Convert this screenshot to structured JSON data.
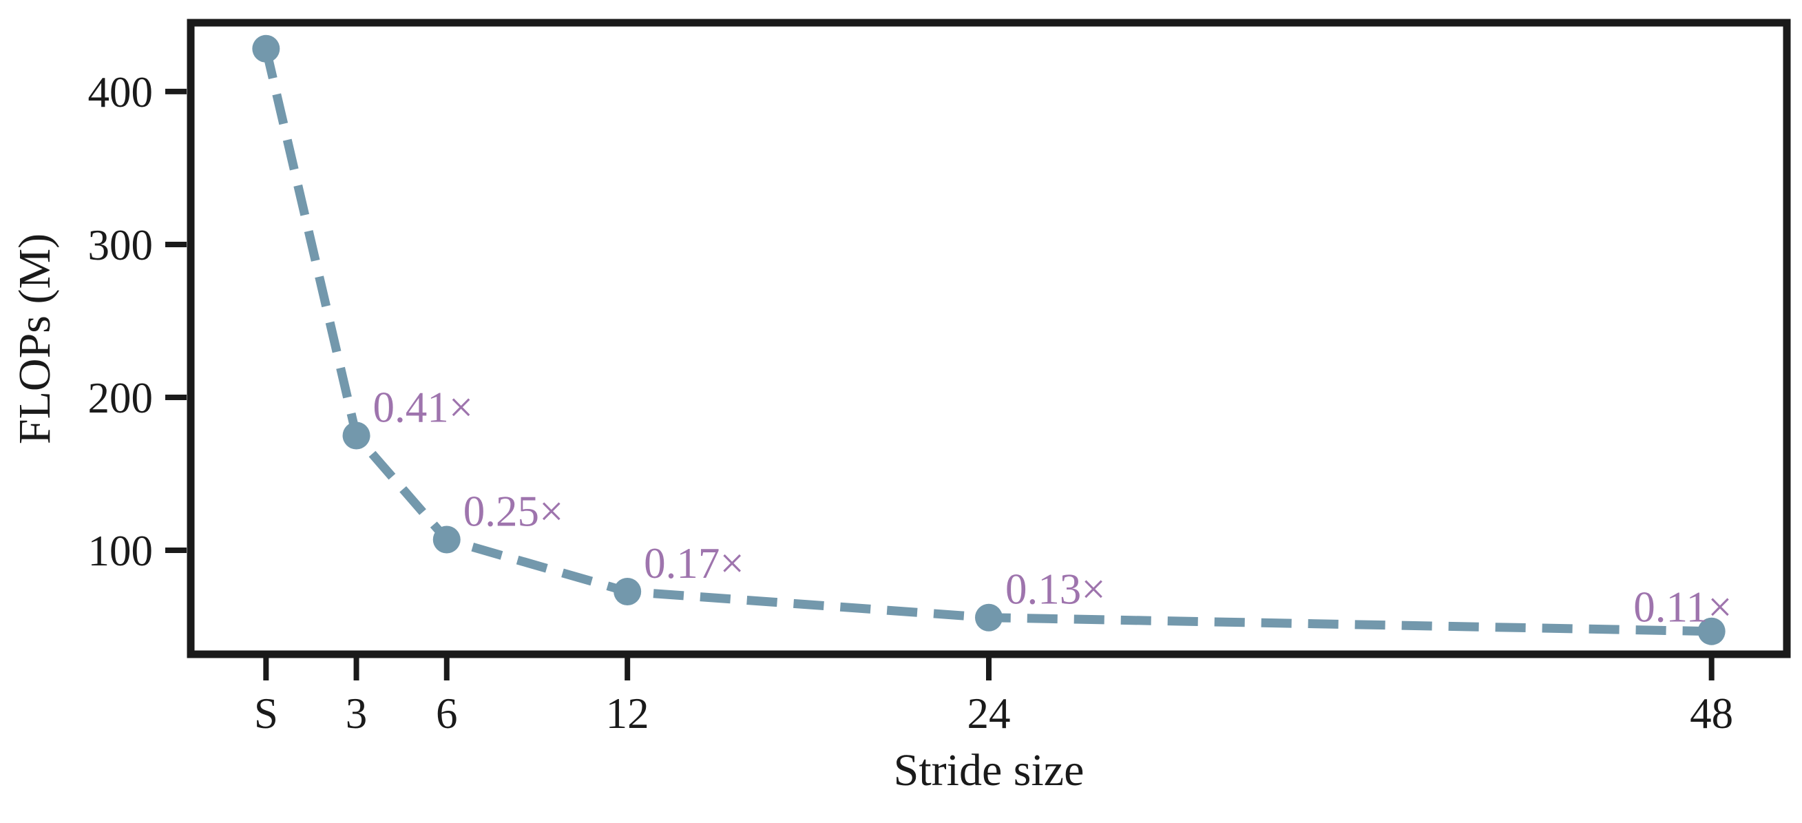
{
  "figure": {
    "background": "#ffffff"
  },
  "chart_data": {
    "type": "line",
    "title": "",
    "xlabel": "Stride size",
    "ylabel": "FLOPs (M)",
    "grid": false,
    "legend": false,
    "xlim": [
      -2.5,
      50.5
    ],
    "ylim": [
      32,
      445
    ],
    "y_ticks": [
      100,
      200,
      300,
      400
    ],
    "axis_color": "#1a1a1a",
    "annotation_color": "#9e74ad",
    "series": [
      {
        "name": "FLOPs vs stride size",
        "x": [
          0,
          3,
          6,
          12,
          24,
          48
        ],
        "x_labels": [
          "S",
          "3",
          "6",
          "12",
          "24",
          "48"
        ],
        "values": [
          428,
          175,
          107,
          73,
          56,
          47
        ],
        "annotations": [
          "",
          "0.41×",
          "0.25×",
          "0.17×",
          "0.13×",
          "0.11×"
        ],
        "color": "#7398ac",
        "line_style": "dashed",
        "marker": "circle"
      }
    ]
  }
}
